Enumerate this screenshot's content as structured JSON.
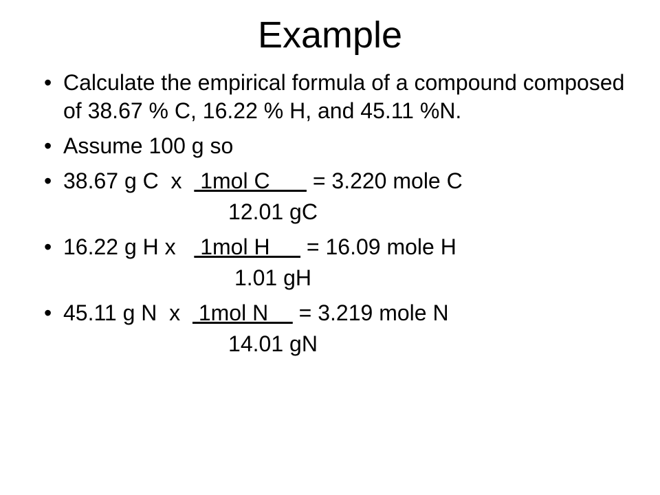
{
  "title": "Example",
  "bullets": {
    "b1": "Calculate the empirical formula of a compound composed of 38.67 % C, 16.22 % H, and 45.11 %N.",
    "b2": "Assume 100 g so",
    "c1": {
      "lhs": "38.67 g C  x  ",
      "num": " 1mol C      ",
      "eq": " = 3.220 mole C",
      "denom": "                           12.01 gC"
    },
    "c2": {
      "lhs": "16.22 g H x   ",
      "num": " 1mol H     ",
      "eq": " = 16.09 mole H",
      "denom": "                            1.01 gH"
    },
    "c3": {
      "lhs": "45.11 g N  x  ",
      "num": " 1mol N    ",
      "eq": " = 3.219 mole N",
      "denom": "                           14.01 gN"
    }
  },
  "style": {
    "bg": "#ffffff",
    "text": "#000000",
    "title_fontsize": 54,
    "body_fontsize": 32,
    "font_family": "Arial"
  }
}
